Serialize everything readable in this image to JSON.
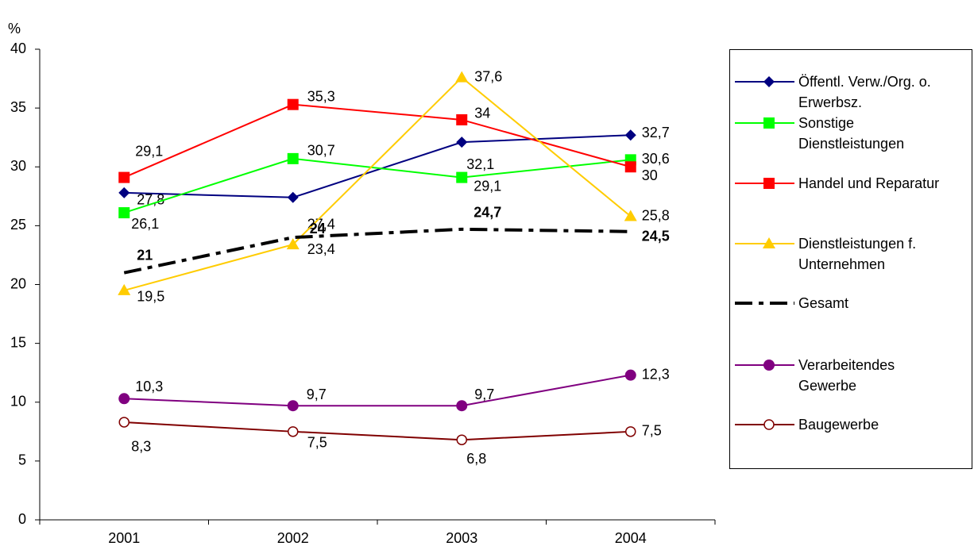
{
  "chart_data": {
    "type": "line",
    "ylabel": "%",
    "categories": [
      "2001",
      "2002",
      "2003",
      "2004"
    ],
    "ylim": [
      0,
      40
    ],
    "yticks": [
      0,
      5,
      10,
      15,
      20,
      25,
      30,
      35,
      40
    ],
    "series": [
      {
        "name": "Öffentl. Verw./Org. o. Erwerbsz.",
        "color": "#000080",
        "marker": "diamond",
        "values": [
          27.8,
          27.4,
          32.1,
          32.7
        ],
        "value_labels": [
          "27,8",
          "27,4",
          "32,1",
          "32,7"
        ]
      },
      {
        "name": "Sonstige Dienstleistungen",
        "color": "#00ff00",
        "marker": "square",
        "values": [
          26.1,
          30.7,
          29.1,
          30.6
        ],
        "value_labels": [
          "26,1",
          "30,7",
          "29,1",
          "30,6"
        ]
      },
      {
        "name": "Handel und Reparatur",
        "color": "#ff0000",
        "marker": "square",
        "values": [
          29.1,
          35.3,
          34,
          30
        ],
        "value_labels": [
          "29,1",
          "35,3",
          "34",
          "30"
        ]
      },
      {
        "name": "Dienstleistungen f. Unternehmen",
        "color": "#ffcc00",
        "marker": "triangle",
        "values": [
          19.5,
          23.4,
          37.6,
          25.8
        ],
        "value_labels": [
          "19,5",
          "23,4",
          "37,6",
          "25,8"
        ]
      },
      {
        "name": "Gesamt",
        "color": "#000000",
        "line_style": "dash-dot",
        "values": [
          21,
          24,
          24.7,
          24.5
        ],
        "value_labels": [
          "21",
          "24",
          "24,7",
          "24,5"
        ]
      },
      {
        "name": "Verarbeitendes Gewerbe",
        "color": "#800080",
        "marker": "circle",
        "values": [
          10.3,
          9.7,
          9.7,
          12.3
        ],
        "value_labels": [
          "10,3",
          "9,7",
          "9,7",
          "12,3"
        ]
      },
      {
        "name": "Baugewerbe",
        "color": "#800000",
        "marker": "open-circle",
        "values": [
          8.3,
          7.5,
          6.8,
          7.5
        ],
        "value_labels": [
          "8,3",
          "7,5",
          "6,8",
          "7,5"
        ]
      }
    ]
  }
}
